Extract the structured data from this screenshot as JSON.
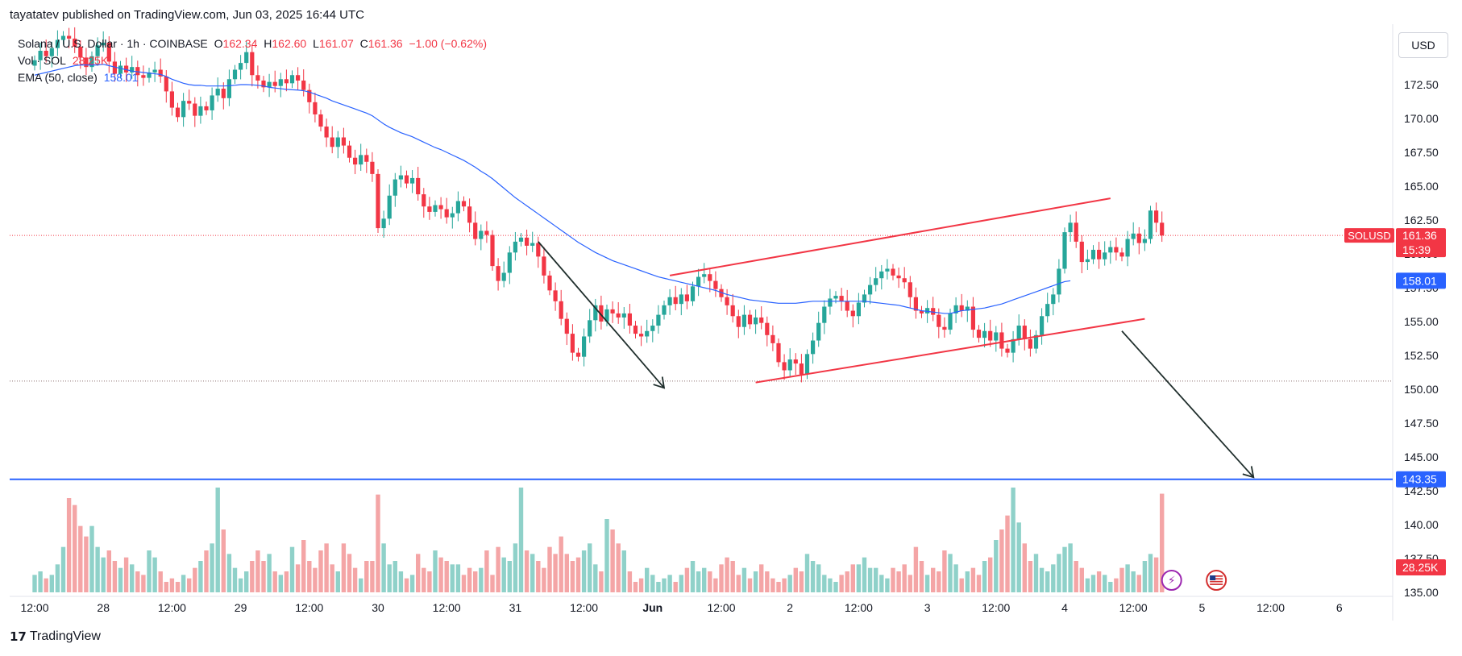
{
  "header": {
    "publisher": "tayatatev published on TradingView.com, Jun 03, 2025 16:44 UTC"
  },
  "legend": {
    "symbol": "Solana / U.S. Dollar · 1h · COINBASE",
    "o_label": "O",
    "o_value": "162.34",
    "h_label": "H",
    "h_value": "162.60",
    "l_label": "L",
    "l_value": "161.07",
    "c_label": "C",
    "c_value": "161.36",
    "change": "−1.00 (−0.62%)",
    "vol_label": "Vol · SOL",
    "vol_value": "28.25K",
    "ema_label": "EMA (50, close)",
    "ema_value": "158.01"
  },
  "currency_button": "USD",
  "brand": "TradingView",
  "colors": {
    "up": "#26a69a",
    "down": "#f23645",
    "ema": "#2962ff",
    "support": "#2962ff",
    "channel": "#f23645",
    "arrow": "#1f2e2c",
    "vol_up": "#8fd1c9",
    "vol_down": "#f4a5a6"
  },
  "chart_data": {
    "type": "candlestick",
    "symbol": "SOLUSD",
    "ylim": [
      133.5,
      176
    ],
    "y_ticks": [
      "172.50",
      "170.00",
      "167.50",
      "165.00",
      "162.50",
      "160.00",
      "157.50",
      "155.00",
      "152.50",
      "150.00",
      "147.50",
      "145.00",
      "142.50",
      "140.00",
      "137.50",
      "135.00"
    ],
    "x_ticks": [
      {
        "label": "12:00",
        "x": 0
      },
      {
        "label": "28",
        "x": 12
      },
      {
        "label": "12:00",
        "x": 24
      },
      {
        "label": "29",
        "x": 36
      },
      {
        "label": "12:00",
        "x": 48
      },
      {
        "label": "30",
        "x": 60
      },
      {
        "label": "12:00",
        "x": 72
      },
      {
        "label": "31",
        "x": 84
      },
      {
        "label": "12:00",
        "x": 96
      },
      {
        "label": "Jun",
        "x": 108
      },
      {
        "label": "12:00",
        "x": 120
      },
      {
        "label": "2",
        "x": 132
      },
      {
        "label": "12:00",
        "x": 144
      },
      {
        "label": "3",
        "x": 156
      },
      {
        "label": "12:00",
        "x": 168
      },
      {
        "label": "4",
        "x": 180
      },
      {
        "label": "12:00",
        "x": 192
      },
      {
        "label": "5",
        "x": 204
      },
      {
        "label": "12:00",
        "x": 216
      },
      {
        "label": "6",
        "x": 228
      }
    ],
    "close": [
      174.3,
      175.0,
      174.6,
      175.2,
      175.8,
      176.1,
      175.9,
      175.3,
      174.5,
      173.8,
      174.6,
      175.4,
      175.6,
      174.2,
      173.3,
      173.9,
      173.4,
      173.8,
      173.2,
      173.0,
      173.4,
      173.6,
      173.1,
      172.0,
      170.8,
      170.1,
      171.3,
      171.1,
      170.2,
      170.9,
      170.6,
      171.7,
      172.2,
      171.5,
      172.9,
      173.6,
      174.1,
      174.9,
      173.2,
      172.8,
      172.3,
      172.7,
      172.4,
      172.9,
      172.6,
      173.2,
      172.8,
      172.1,
      171.2,
      170.3,
      169.4,
      168.6,
      167.9,
      168.6,
      168.0,
      167.1,
      166.6,
      167.3,
      166.8,
      165.9,
      161.9,
      162.6,
      164.3,
      165.5,
      165.8,
      165.2,
      165.6,
      164.4,
      163.5,
      163.1,
      163.6,
      163.3,
      162.7,
      163.0,
      163.9,
      163.5,
      162.3,
      161.1,
      161.7,
      161.4,
      159.1,
      158.0,
      158.6,
      160.1,
      160.9,
      161.2,
      160.6,
      160.8,
      159.8,
      158.4,
      157.3,
      156.5,
      155.2,
      154.1,
      152.7,
      152.4,
      153.9,
      155.1,
      156.2,
      155.0,
      155.9,
      155.6,
      155.3,
      155.6,
      154.7,
      154.1,
      153.9,
      154.3,
      154.7,
      155.5,
      156.2,
      156.8,
      156.3,
      157.0,
      156.5,
      157.6,
      158.3,
      158.5,
      158.0,
      157.4,
      156.8,
      156.2,
      155.4,
      154.6,
      155.5,
      154.8,
      155.3,
      154.9,
      154.0,
      153.4,
      152.0,
      151.4,
      152.2,
      151.9,
      151.1,
      152.6,
      153.6,
      154.9,
      156.1,
      156.7,
      156.9,
      156.5,
      155.8,
      155.4,
      156.4,
      157.0,
      157.7,
      158.2,
      158.7,
      158.9,
      158.4,
      158.2,
      157.9,
      156.8,
      155.8,
      155.6,
      156.0,
      155.5,
      154.6,
      154.4,
      155.6,
      156.2,
      155.8,
      156.1,
      154.4,
      153.8,
      154.3,
      153.6,
      154.2,
      153.0,
      152.7,
      153.7,
      154.7,
      153.7,
      153.0,
      154.0,
      155.4,
      156.3,
      157.0,
      158.9,
      161.6,
      162.3,
      160.9,
      159.4,
      159.6,
      160.3,
      159.6,
      160.1,
      160.5,
      160.1,
      159.8,
      161.1,
      161.5,
      160.8,
      161.1,
      163.2,
      162.3,
      161.36
    ],
    "ema": [
      173.2,
      173.3,
      173.4,
      173.5,
      173.6,
      173.7,
      173.8,
      173.9,
      173.95,
      173.95,
      173.95,
      173.95,
      174.0,
      173.9,
      173.8,
      173.7,
      173.6,
      173.5,
      173.45,
      173.4,
      173.35,
      173.3,
      173.25,
      173.1,
      172.9,
      172.75,
      172.6,
      172.5,
      172.45,
      172.45,
      172.4,
      172.4,
      172.4,
      172.4,
      172.42,
      172.45,
      172.5,
      172.5,
      172.48,
      172.45,
      172.4,
      172.3,
      172.25,
      172.2,
      172.15,
      172.12,
      172.1,
      172.05,
      171.95,
      171.8,
      171.65,
      171.5,
      171.3,
      171.15,
      171.0,
      170.85,
      170.7,
      170.55,
      170.4,
      170.2,
      169.9,
      169.6,
      169.35,
      169.15,
      168.95,
      168.8,
      168.65,
      168.45,
      168.25,
      168.05,
      167.85,
      167.7,
      167.5,
      167.3,
      167.1,
      166.9,
      166.65,
      166.4,
      166.1,
      165.85,
      165.55,
      165.2,
      164.85,
      164.5,
      164.15,
      163.85,
      163.55,
      163.25,
      162.95,
      162.65,
      162.35,
      162.05,
      161.75,
      161.45,
      161.15,
      160.85,
      160.6,
      160.35,
      160.1,
      159.9,
      159.7,
      159.5,
      159.35,
      159.2,
      159.05,
      158.9,
      158.75,
      158.6,
      158.45,
      158.3,
      158.2,
      158.1,
      158.0,
      157.9,
      157.8,
      157.7,
      157.6,
      157.5,
      157.4,
      157.3,
      157.15,
      157.0,
      156.9,
      156.8,
      156.7,
      156.6,
      156.55,
      156.5,
      156.45,
      156.4,
      156.35,
      156.35,
      156.35,
      156.35,
      156.4,
      156.45,
      156.5,
      156.5,
      156.5,
      156.5,
      156.5,
      156.5,
      156.5,
      156.5,
      156.5,
      156.5,
      156.45,
      156.4,
      156.35,
      156.3,
      156.25,
      156.2,
      156.1,
      156.0,
      155.9,
      155.8,
      155.75,
      155.7,
      155.65,
      155.6,
      155.6,
      155.7,
      155.8,
      155.85,
      155.9,
      155.95,
      156.0,
      156.1,
      156.2,
      156.3,
      156.45,
      156.6,
      156.75,
      156.9,
      157.05,
      157.2,
      157.35,
      157.5,
      157.65,
      157.8,
      157.95,
      158.01
    ],
    "volume": [
      5,
      6,
      4,
      5,
      8,
      13,
      27,
      25,
      19,
      16,
      19,
      13,
      10,
      12,
      9,
      7,
      10,
      8,
      6,
      5,
      12,
      10,
      6,
      3,
      4,
      3,
      5,
      4,
      7,
      9,
      12,
      14,
      30,
      18,
      11,
      7,
      4,
      6,
      9,
      12,
      9,
      11,
      6,
      5,
      6,
      13,
      8,
      15,
      9,
      7,
      12,
      14,
      8,
      6,
      14,
      11,
      7,
      4,
      9,
      9,
      28,
      14,
      8,
      9,
      6,
      4,
      5,
      11,
      7,
      6,
      12,
      10,
      9,
      8,
      8,
      5,
      7,
      6,
      7,
      12,
      5,
      13,
      10,
      9,
      14,
      30,
      12,
      11,
      9,
      7,
      13,
      11,
      16,
      11,
      9,
      10,
      12,
      14,
      8,
      6,
      21,
      18,
      14,
      12,
      6,
      3,
      4,
      7,
      5,
      3,
      4,
      5,
      3,
      5,
      7,
      9,
      6,
      7,
      6,
      4,
      8,
      10,
      9,
      5,
      7,
      4,
      6,
      8,
      6,
      4,
      3,
      4,
      5,
      7,
      6,
      11,
      9,
      8,
      5,
      4,
      3,
      5,
      6,
      8,
      8,
      10,
      7,
      7,
      5,
      4,
      7,
      6,
      8,
      5,
      13,
      9,
      5,
      7,
      6,
      12,
      11,
      8,
      4,
      6,
      7,
      5,
      9,
      10,
      15,
      18,
      22,
      30,
      20,
      14,
      9,
      11,
      7,
      6,
      8,
      11,
      13,
      14,
      9,
      7,
      4,
      5,
      6,
      5,
      3,
      4,
      7,
      8,
      6,
      5,
      9,
      11,
      10,
      28.25
    ],
    "last_price": "161.36",
    "countdown": "15:39",
    "symbol_tag": "SOLUSD",
    "ema_tag": "158.01",
    "support_tag": "143.35",
    "vol_tag": "28.25K",
    "support_level": 143.35,
    "dotted_level": 150.6,
    "channel_upper": [
      [
        111,
        158.4
      ],
      [
        188,
        164.1
      ]
    ],
    "channel_lower": [
      [
        126,
        150.5
      ],
      [
        194,
        155.2
      ]
    ],
    "arrows": [
      {
        "from": [
          88,
          160.9
        ],
        "to": [
          110,
          150.1
        ]
      },
      {
        "from": [
          190,
          154.3
        ],
        "to": [
          213,
          143.5
        ]
      }
    ]
  }
}
